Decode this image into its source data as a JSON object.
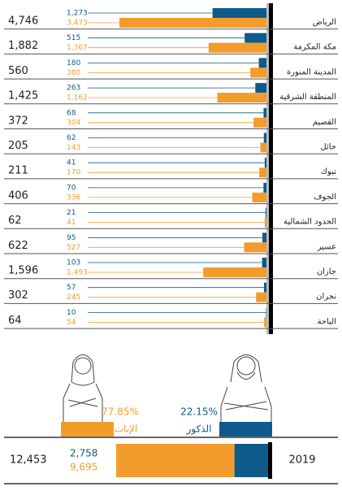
{
  "chart_data": {
    "type": "bar",
    "categories": [
      "الرياض",
      "مكة المكرمة",
      "المدينة المنورة",
      "المنطقة الشرقية",
      "القصيم",
      "حائل",
      "تبوك",
      "الجوف",
      "الحدود الشمالية",
      "عسير",
      "جازان",
      "نجران",
      "الباحة"
    ],
    "totals": {
      "values": [
        4746,
        1882,
        560,
        1425,
        372,
        205,
        211,
        406,
        62,
        622,
        1596,
        302,
        64
      ],
      "value_labels": [
        "4,746",
        "1,882",
        "560",
        "1,425",
        "372",
        "205",
        "211",
        "406",
        "62",
        "622",
        "1,596",
        "302",
        "64"
      ]
    },
    "series": [
      {
        "name": "الذكور",
        "color": "#0e5a8a",
        "values": [
          1273,
          515,
          180,
          263,
          68,
          62,
          41,
          70,
          21,
          95,
          103,
          57,
          10
        ],
        "value_labels": [
          "1,273",
          "515",
          "180",
          "263",
          "68",
          "62",
          "41",
          "70",
          "21",
          "95",
          "103",
          "57",
          "10"
        ],
        "share": 22.15,
        "share_label": "22.15%",
        "total": 2758,
        "total_label": "2,758"
      },
      {
        "name": "الإناث",
        "color": "#f39c2c",
        "values": [
          3473,
          1367,
          380,
          1162,
          304,
          143,
          170,
          336,
          41,
          527,
          1493,
          245,
          54
        ],
        "value_labels": [
          "3,473",
          "1,367",
          "380",
          "1,162",
          "304",
          "143",
          "170",
          "336",
          "41",
          "527",
          "1,493",
          "245",
          "54"
        ],
        "share": 77.85,
        "share_label": "77.85%",
        "total": 9695,
        "total_label": "9,695"
      }
    ],
    "year": "2019",
    "grand_total": 12453,
    "grand_total_label": "12,453"
  }
}
